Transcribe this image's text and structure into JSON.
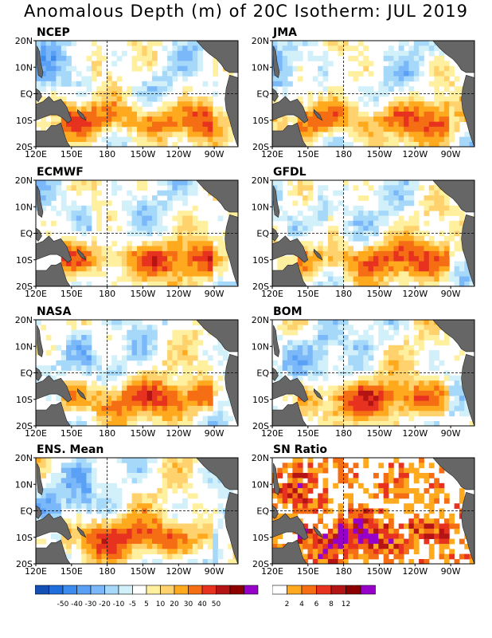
{
  "title": "Anomalous Depth (m) of 20C Isotherm: JUL 2019",
  "chart_data": {
    "type": "heatmap",
    "panels": [
      {
        "name": "NCEP",
        "kind": "anomaly"
      },
      {
        "name": "JMA",
        "kind": "anomaly"
      },
      {
        "name": "ECMWF",
        "kind": "anomaly"
      },
      {
        "name": "GFDL",
        "kind": "anomaly"
      },
      {
        "name": "NASA",
        "kind": "anomaly"
      },
      {
        "name": "BOM",
        "kind": "anomaly"
      },
      {
        "name": "ENS. Mean",
        "kind": "anomaly"
      },
      {
        "name": "SN Ratio",
        "kind": "snratio"
      }
    ],
    "lat_ticks": [
      "20N",
      "10N",
      "EQ",
      "10S",
      "20S"
    ],
    "lon_ticks": [
      "120E",
      "150E",
      "180",
      "150W",
      "120W",
      "90W"
    ],
    "anomaly_colorbar": {
      "colors": [
        "#1450b4",
        "#1e6edc",
        "#3c8cf0",
        "#5aa0f5",
        "#7ab8fa",
        "#a6d8fa",
        "#d2f0fa",
        "#ffffff",
        "#fff0a0",
        "#ffd26e",
        "#ffaa1e",
        "#f56e14",
        "#e6321e",
        "#b41414",
        "#8c0000",
        "#9600c8"
      ],
      "labels": [
        "-50",
        "-40",
        "-30",
        "-20",
        "-10",
        "-5",
        "5",
        "10",
        "20",
        "30",
        "40",
        "50"
      ]
    },
    "snratio_colorbar": {
      "colors": [
        "#ffffff",
        "#ffaa1e",
        "#f56e14",
        "#e6321e",
        "#b41414",
        "#8c0000",
        "#9600c8"
      ],
      "labels": [
        "2",
        "4",
        "6",
        "8",
        "12"
      ]
    }
  }
}
